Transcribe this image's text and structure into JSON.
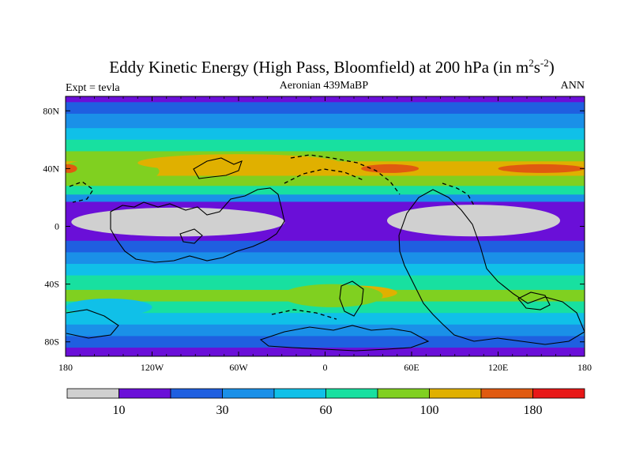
{
  "chart_data": {
    "type": "heatmap",
    "title": "Eddy Kinetic Energy (High Pass, Bloomfield) at 200 hPa (in m",
    "title_sup1": "2",
    "title_mid": "s",
    "title_sup2": "-2",
    "title_end": ")",
    "left_label": "Expt = tevla",
    "center_label": "Aeronian 439MaBP",
    "right_label": "ANN",
    "x_range": [
      -180,
      180
    ],
    "y_range": [
      -90,
      90
    ],
    "x_ticks": [
      {
        "value": -180,
        "label": "180"
      },
      {
        "value": -120,
        "label": "120W"
      },
      {
        "value": -60,
        "label": "60W"
      },
      {
        "value": 0,
        "label": "0"
      },
      {
        "value": 60,
        "label": "60E"
      },
      {
        "value": 120,
        "label": "120E"
      },
      {
        "value": 180,
        "label": "180"
      }
    ],
    "y_ticks": [
      {
        "value": 80,
        "label": "80N"
      },
      {
        "value": 40,
        "label": "40N"
      },
      {
        "value": 0,
        "label": "0"
      },
      {
        "value": -40,
        "label": "40S"
      },
      {
        "value": -80,
        "label": "80S"
      }
    ],
    "colorbar": {
      "colors": [
        "#d0d0d0",
        "#6a0fd8",
        "#1f5fe0",
        "#1a90e8",
        "#10c0e8",
        "#18e0a0",
        "#80d020",
        "#e0b000",
        "#e05a10",
        "#e81818"
      ],
      "tick_labels": [
        {
          "boundary": 1,
          "label": "10"
        },
        {
          "boundary": 3,
          "label": "30"
        },
        {
          "boundary": 5,
          "label": "60"
        },
        {
          "boundary": 7,
          "label": "100"
        },
        {
          "boundary": 9,
          "label": "180"
        }
      ]
    },
    "bands": [
      {
        "lat_top": 90,
        "lat_bottom": 86,
        "level": 1
      },
      {
        "lat_top": 86,
        "lat_bottom": 78,
        "level": 2
      },
      {
        "lat_top": 78,
        "lat_bottom": 68,
        "level": 3
      },
      {
        "lat_top": 68,
        "lat_bottom": 60,
        "level": 4
      },
      {
        "lat_top": 60,
        "lat_bottom": 52,
        "level": 5
      },
      {
        "lat_top": 52,
        "lat_bottom": 45,
        "level": 6
      },
      {
        "lat_top": 45,
        "lat_bottom": 35,
        "level": 7
      },
      {
        "lat_top": 35,
        "lat_bottom": 28,
        "level": 6
      },
      {
        "lat_top": 28,
        "lat_bottom": 22,
        "level": 5
      },
      {
        "lat_top": 22,
        "lat_bottom": 17,
        "level": 3
      },
      {
        "lat_top": 17,
        "lat_bottom": -10,
        "level": 1
      },
      {
        "lat_top": -10,
        "lat_bottom": -18,
        "level": 2
      },
      {
        "lat_top": -18,
        "lat_bottom": -26,
        "level": 3
      },
      {
        "lat_top": -26,
        "lat_bottom": -34,
        "level": 4
      },
      {
        "lat_top": -34,
        "lat_bottom": -44,
        "level": 5
      },
      {
        "lat_top": -44,
        "lat_bottom": -52,
        "level": 6
      },
      {
        "lat_top": -52,
        "lat_bottom": -60,
        "level": 5
      },
      {
        "lat_top": -60,
        "lat_bottom": -68,
        "level": 4
      },
      {
        "lat_top": -68,
        "lat_bottom": -76,
        "level": 3
      },
      {
        "lat_top": -76,
        "lat_bottom": -84,
        "level": 2
      },
      {
        "lat_top": -84,
        "lat_bottom": -90,
        "level": 1
      }
    ],
    "regions": [
      {
        "name": "ne-atlantic-green-bulge",
        "level": 6,
        "lon_c": -150,
        "lat_c": 38,
        "lon_r": 35,
        "lat_r": 9
      },
      {
        "name": "n-pacific-warm-shift",
        "level": 7,
        "lon_c": -60,
        "lat_c": 44,
        "lon_r": 70,
        "lat_r": 6
      },
      {
        "name": "s-hemi-yellow-patch",
        "level": 7,
        "lon_c": 20,
        "lat_c": -46,
        "lon_r": 30,
        "lat_r": 5
      },
      {
        "name": "s-hemi-green-arc",
        "level": 6,
        "lon_c": 5,
        "lat_c": -48,
        "lon_r": 35,
        "lat_r": 8
      },
      {
        "name": "sw-blue-dip",
        "level": 4,
        "lon_c": -150,
        "lat_c": -56,
        "lon_r": 30,
        "lat_r": 6
      },
      {
        "name": "w-orange-cell",
        "level": 8,
        "lon_c": -178,
        "lat_c": 40,
        "lon_r": 6,
        "lat_r": 3
      },
      {
        "name": "c-orange-cell",
        "level": 8,
        "lon_c": 45,
        "lat_c": 40,
        "lon_r": 20,
        "lat_r": 3
      },
      {
        "name": "e-orange-cell",
        "level": 8,
        "lon_c": 150,
        "lat_c": 40,
        "lon_r": 30,
        "lat_r": 3
      },
      {
        "name": "w-gray-low",
        "level": 0,
        "lon_c": -102,
        "lat_c": 3,
        "lon_r": 74,
        "lat_r": 10
      },
      {
        "name": "e-gray-low",
        "level": 0,
        "lon_c": 103,
        "lat_c": 4,
        "lon_r": 60,
        "lat_r": 11
      }
    ]
  }
}
